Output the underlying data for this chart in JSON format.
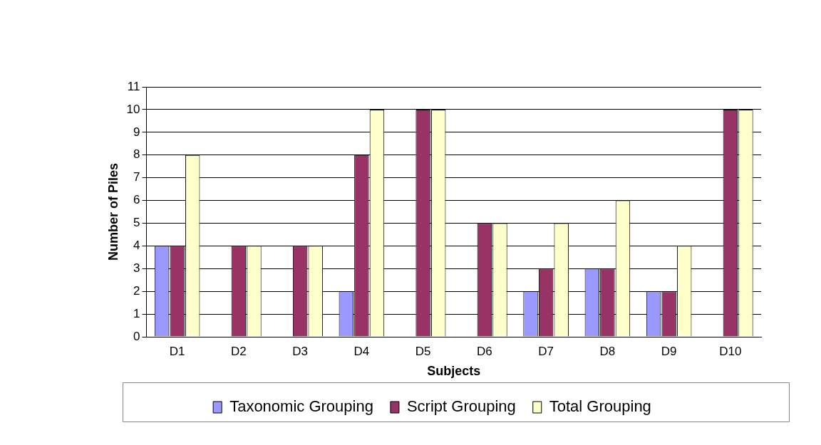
{
  "chart_data": {
    "type": "bar",
    "xlabel": "Subjects",
    "ylabel": "Number of Piles",
    "categories": [
      "D1",
      "D2",
      "D3",
      "D4",
      "D5",
      "D6",
      "D7",
      "D8",
      "D9",
      "D10"
    ],
    "series": [
      {
        "name": "Taxonomic Grouping",
        "color": "#9999ff",
        "values": [
          4,
          0,
          0,
          2,
          0,
          0,
          2,
          3,
          2,
          0
        ]
      },
      {
        "name": "Script Grouping",
        "color": "#993366",
        "values": [
          4,
          4,
          4,
          8,
          10,
          5,
          3,
          3,
          2,
          10
        ]
      },
      {
        "name": "Total Grouping",
        "color": "#ffffcc",
        "values": [
          8,
          4,
          4,
          10,
          10,
          5,
          5,
          6,
          4,
          10
        ]
      }
    ],
    "ylim": [
      0,
      11
    ],
    "yticks": [
      0,
      1,
      2,
      3,
      4,
      5,
      6,
      7,
      8,
      9,
      10,
      11
    ],
    "grid": "y",
    "legend": "bottom"
  }
}
